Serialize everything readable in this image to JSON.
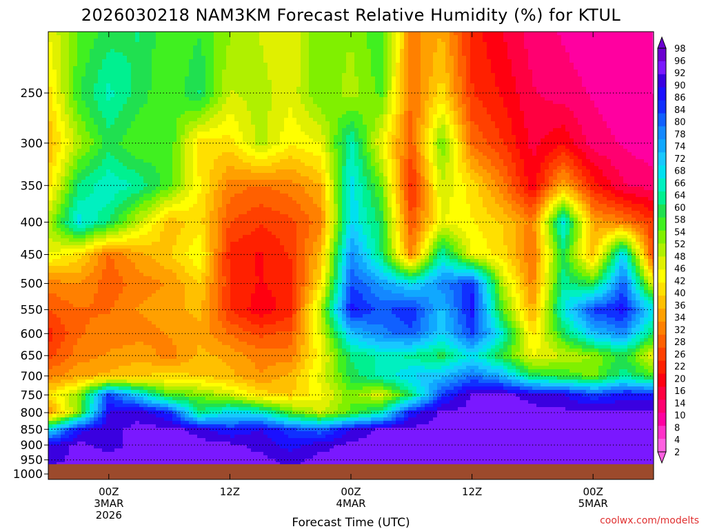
{
  "chart_data": {
    "type": "heatmap",
    "title": "2026030218 NAM3KM Forecast Relative Humidity (%) for KTUL",
    "xlabel": "Forecast Time (UTC)",
    "ylabel": "",
    "credit": "coolwx.com/modelts",
    "x_ticks": [
      {
        "hour": 6,
        "lines": [
          "00Z",
          "3MAR",
          "2026"
        ]
      },
      {
        "hour": 18,
        "lines": [
          "12Z"
        ]
      },
      {
        "hour": 30,
        "lines": [
          "00Z",
          "4MAR"
        ]
      },
      {
        "hour": 42,
        "lines": [
          "12Z"
        ]
      },
      {
        "hour": 54,
        "lines": [
          "00Z",
          "5MAR"
        ]
      }
    ],
    "xlim": [
      0,
      60
    ],
    "y_levels": [
      250,
      300,
      350,
      400,
      450,
      500,
      550,
      600,
      650,
      700,
      750,
      800,
      850,
      900,
      950,
      1000
    ],
    "ylim": [
      200,
      1020
    ],
    "y_scale": "log-pressure",
    "grid": true,
    "colorbar": {
      "labels": [
        98,
        96,
        92,
        90,
        86,
        84,
        80,
        78,
        74,
        72,
        68,
        66,
        64,
        60,
        58,
        54,
        52,
        48,
        46,
        42,
        40,
        36,
        34,
        32,
        28,
        26,
        22,
        20,
        16,
        14,
        10,
        8,
        4,
        2
      ],
      "colors": [
        "#6a00d0",
        "#7a18ff",
        "#3a00e0",
        "#1a10ff",
        "#1030ff",
        "#1060ff",
        "#1488ff",
        "#10a8ff",
        "#18c8ff",
        "#00e0f0",
        "#00f0c0",
        "#00f090",
        "#20e050",
        "#40f020",
        "#80f000",
        "#b0f000",
        "#e0f000",
        "#ffff00",
        "#ffe000",
        "#ffc000",
        "#ffa000",
        "#ff8000",
        "#ff6000",
        "#ff4000",
        "#ff2000",
        "#ff0010",
        "#ff0040",
        "#ff0070",
        "#ff00a0",
        "#ff30c8",
        "#ff60e0"
      ],
      "position": "right"
    },
    "rh_field": {
      "hours": [
        0,
        3,
        6,
        9,
        12,
        15,
        18,
        21,
        24,
        27,
        30,
        33,
        36,
        39,
        42,
        45,
        48,
        51,
        54,
        57,
        60
      ],
      "levels": [
        200,
        250,
        300,
        350,
        400,
        450,
        500,
        550,
        600,
        650,
        700,
        750,
        800,
        850,
        900,
        950,
        1000
      ],
      "values": [
        [
          45,
          55,
          60,
          62,
          55,
          58,
          52,
          48,
          45,
          55,
          52,
          58,
          30,
          35,
          20,
          15,
          10,
          8,
          6,
          5,
          5
        ],
        [
          40,
          58,
          66,
          60,
          55,
          62,
          48,
          50,
          46,
          55,
          50,
          56,
          28,
          40,
          22,
          18,
          12,
          10,
          8,
          6,
          5
        ],
        [
          35,
          50,
          60,
          55,
          58,
          40,
          40,
          50,
          42,
          45,
          66,
          45,
          26,
          55,
          28,
          22,
          14,
          18,
          10,
          8,
          6
        ],
        [
          40,
          62,
          68,
          64,
          56,
          42,
          30,
          28,
          30,
          35,
          70,
          55,
          20,
          48,
          40,
          30,
          16,
          35,
          20,
          12,
          10
        ],
        [
          50,
          70,
          62,
          48,
          36,
          40,
          25,
          22,
          24,
          30,
          72,
          60,
          25,
          45,
          42,
          38,
          30,
          70,
          34,
          30,
          22
        ],
        [
          45,
          40,
          28,
          34,
          38,
          45,
          20,
          18,
          22,
          36,
          80,
          62,
          30,
          66,
          45,
          40,
          28,
          60,
          36,
          72,
          22
        ],
        [
          30,
          32,
          26,
          30,
          32,
          38,
          22,
          18,
          20,
          40,
          85,
          78,
          70,
          80,
          88,
          50,
          30,
          64,
          58,
          84,
          45
        ],
        [
          25,
          28,
          28,
          32,
          34,
          36,
          22,
          16,
          20,
          50,
          90,
          84,
          88,
          74,
          90,
          56,
          34,
          68,
          86,
          90,
          70
        ],
        [
          20,
          28,
          30,
          30,
          32,
          34,
          28,
          24,
          26,
          46,
          74,
          80,
          84,
          72,
          86,
          68,
          40,
          60,
          74,
          80,
          60
        ],
        [
          24,
          30,
          32,
          34,
          30,
          36,
          34,
          30,
          30,
          44,
          62,
          66,
          64,
          60,
          70,
          58,
          45,
          48,
          52,
          60,
          44
        ],
        [
          30,
          34,
          36,
          38,
          40,
          38,
          36,
          32,
          36,
          46,
          60,
          66,
          72,
          74,
          82,
          76,
          60,
          58,
          54,
          64,
          56
        ],
        [
          40,
          52,
          86,
          72,
          56,
          54,
          48,
          40,
          38,
          44,
          54,
          46,
          62,
          86,
          96,
          96,
          94,
          92,
          86,
          90,
          90
        ],
        [
          30,
          54,
          92,
          94,
          88,
          62,
          72,
          68,
          56,
          48,
          56,
          66,
          90,
          96,
          96,
          96,
          96,
          96,
          96,
          96,
          96
        ],
        [
          70,
          90,
          94,
          96,
          96,
          94,
          88,
          92,
          86,
          82,
          92,
          96,
          96,
          96,
          96,
          96,
          96,
          96,
          96,
          96,
          96
        ],
        [
          92,
          96,
          94,
          96,
          96,
          96,
          96,
          94,
          90,
          94,
          96,
          96,
          96,
          96,
          96,
          96,
          96,
          96,
          96,
          96,
          96
        ],
        [
          94,
          96,
          96,
          96,
          96,
          96,
          96,
          96,
          94,
          96,
          96,
          96,
          96,
          96,
          96,
          96,
          96,
          96,
          96,
          96,
          96
        ],
        [
          96,
          96,
          96,
          96,
          96,
          96,
          96,
          96,
          96,
          96,
          96,
          96,
          96,
          96,
          96,
          96,
          96,
          96,
          96,
          96,
          96
        ]
      ]
    }
  }
}
